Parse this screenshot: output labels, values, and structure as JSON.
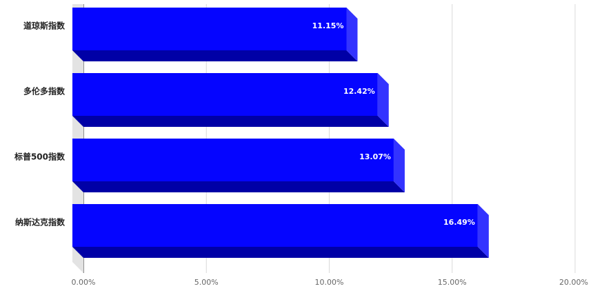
{
  "chart_data": {
    "type": "bar",
    "orientation": "horizontal",
    "style": "3d",
    "categories": [
      "道琼斯指数",
      "多伦多指数",
      "标普500指数",
      "纳斯达克指数"
    ],
    "values": [
      11.15,
      12.42,
      13.07,
      16.49
    ],
    "data_labels": [
      "11.15%",
      "12.42%",
      "13.07%",
      "16.49%"
    ],
    "x_ticks": [
      "0.00%",
      "5.00%",
      "10.00%",
      "15.00%",
      "20.00%"
    ],
    "xlim": [
      0,
      20
    ],
    "grid": true,
    "colors": {
      "bar_front": "#0505FF",
      "bar_bottom": "#0000A6",
      "bar_side": "#3333FF",
      "grid": "#d9d9d9",
      "axis_wall": "#e3e3e3",
      "label_text": "#222222",
      "tick_text": "#666666",
      "data_label_text": "#ffffff"
    }
  }
}
